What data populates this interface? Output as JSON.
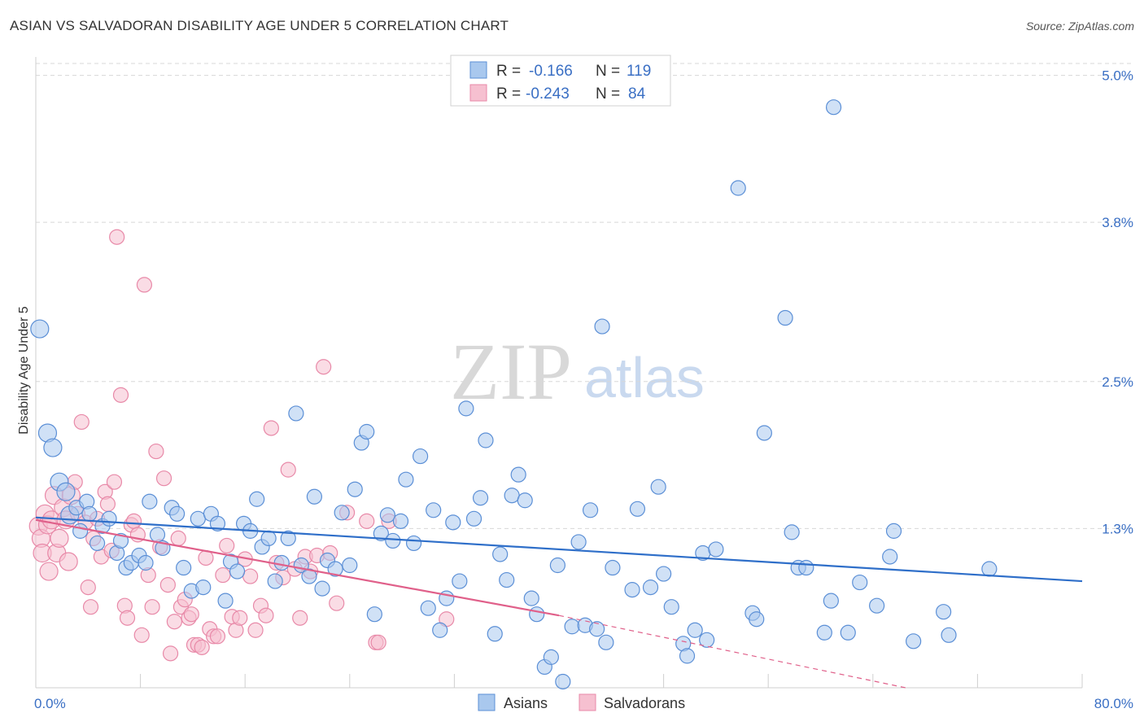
{
  "title": "ASIAN VS SALVADORAN DISABILITY AGE UNDER 5 CORRELATION CHART",
  "source": "Source: ZipAtlas.com",
  "watermark": {
    "zip": "ZIP",
    "atlas": "atlas"
  },
  "colors": {
    "asian_fill": "#a9c8ee",
    "asian_stroke": "#5b8fd6",
    "asian_line": "#2f6fc9",
    "salv_fill": "#f6c0d0",
    "salv_stroke": "#e889a8",
    "salv_line": "#e0608a",
    "grid": "#d8d8d8",
    "tick_text": "#3a6fc4"
  },
  "legend": {
    "rows": [
      {
        "r_label": "R =",
        "r_value": "-0.166",
        "n_label": "N =",
        "n_value": "119"
      },
      {
        "r_label": "R =",
        "r_value": "-0.243",
        "n_label": "N =",
        "n_value": "84"
      }
    ]
  },
  "chart_data": {
    "type": "scatter",
    "title": "ASIAN VS SALVADORAN DISABILITY AGE UNDER 5 CORRELATION CHART",
    "xlabel": "",
    "ylabel": "Disability Age Under 5",
    "xlim": [
      0,
      80
    ],
    "ylim": [
      0,
      5.15
    ],
    "x_tick_labels": [
      "0.0%",
      "80.0%"
    ],
    "y_ticks": [
      1.3,
      2.5,
      3.8,
      5.0
    ],
    "y_tick_labels": [
      "1.3%",
      "2.5%",
      "3.8%",
      "5.0%"
    ],
    "grid": true,
    "legend_position": "top-center",
    "series": [
      {
        "name": "Asians",
        "r": -0.166,
        "n": 119,
        "trend": {
          "x": [
            0,
            80
          ],
          "y": [
            1.39,
            0.87
          ]
        },
        "points": [
          [
            0.3,
            2.93
          ],
          [
            0.9,
            2.08
          ],
          [
            1.3,
            1.96
          ],
          [
            1.8,
            1.68
          ],
          [
            2.3,
            1.6
          ],
          [
            2.6,
            1.41
          ],
          [
            3.1,
            1.47
          ],
          [
            3.4,
            1.28
          ],
          [
            3.9,
            1.52
          ],
          [
            4.1,
            1.42
          ],
          [
            4.7,
            1.18
          ],
          [
            5.1,
            1.32
          ],
          [
            5.6,
            1.38
          ],
          [
            6.2,
            1.1
          ],
          [
            6.5,
            1.2
          ],
          [
            6.9,
            0.98
          ],
          [
            7.3,
            1.02
          ],
          [
            7.9,
            1.08
          ],
          [
            8.4,
            1.02
          ],
          [
            8.7,
            1.52
          ],
          [
            9.3,
            1.25
          ],
          [
            9.7,
            1.14
          ],
          [
            10.4,
            1.47
          ],
          [
            10.8,
            1.42
          ],
          [
            11.3,
            0.98
          ],
          [
            11.9,
            0.79
          ],
          [
            12.4,
            1.38
          ],
          [
            12.8,
            0.82
          ],
          [
            13.4,
            1.42
          ],
          [
            13.9,
            1.34
          ],
          [
            14.5,
            0.71
          ],
          [
            14.9,
            1.03
          ],
          [
            15.4,
            0.95
          ],
          [
            15.9,
            1.34
          ],
          [
            16.4,
            1.28
          ],
          [
            16.9,
            1.54
          ],
          [
            17.3,
            1.15
          ],
          [
            17.8,
            1.22
          ],
          [
            18.3,
            0.87
          ],
          [
            18.8,
            1.02
          ],
          [
            19.3,
            1.22
          ],
          [
            19.9,
            2.24
          ],
          [
            20.3,
            1.0
          ],
          [
            20.9,
            0.91
          ],
          [
            21.3,
            1.56
          ],
          [
            21.9,
            0.81
          ],
          [
            22.3,
            1.04
          ],
          [
            22.9,
            0.97
          ],
          [
            23.4,
            1.43
          ],
          [
            24.0,
            1.0
          ],
          [
            24.4,
            1.62
          ],
          [
            24.9,
            2.0
          ],
          [
            25.3,
            2.09
          ],
          [
            25.9,
            0.6
          ],
          [
            26.4,
            1.26
          ],
          [
            26.9,
            1.41
          ],
          [
            27.3,
            1.2
          ],
          [
            27.9,
            1.36
          ],
          [
            28.3,
            1.7
          ],
          [
            28.9,
            1.18
          ],
          [
            29.4,
            1.89
          ],
          [
            30.0,
            0.65
          ],
          [
            30.4,
            1.45
          ],
          [
            30.9,
            0.47
          ],
          [
            31.4,
            0.73
          ],
          [
            31.9,
            1.35
          ],
          [
            32.4,
            0.87
          ],
          [
            32.9,
            2.28
          ],
          [
            33.5,
            1.38
          ],
          [
            34.0,
            1.55
          ],
          [
            34.4,
            2.02
          ],
          [
            35.1,
            0.44
          ],
          [
            35.5,
            1.09
          ],
          [
            36.0,
            0.88
          ],
          [
            36.4,
            1.57
          ],
          [
            36.9,
            1.74
          ],
          [
            37.4,
            1.53
          ],
          [
            37.9,
            0.73
          ],
          [
            38.3,
            0.6
          ],
          [
            38.9,
            0.17
          ],
          [
            39.4,
            0.25
          ],
          [
            39.9,
            1.0
          ],
          [
            40.3,
            0.05
          ],
          [
            41.0,
            0.5
          ],
          [
            41.5,
            1.19
          ],
          [
            42.0,
            0.51
          ],
          [
            42.4,
            1.45
          ],
          [
            42.9,
            0.48
          ],
          [
            43.3,
            2.95
          ],
          [
            43.6,
            0.37
          ],
          [
            44.1,
            0.98
          ],
          [
            45.6,
            0.8
          ],
          [
            46.0,
            1.46
          ],
          [
            47.0,
            0.82
          ],
          [
            47.6,
            1.64
          ],
          [
            48.0,
            0.93
          ],
          [
            48.6,
            0.66
          ],
          [
            49.5,
            0.36
          ],
          [
            49.8,
            0.26
          ],
          [
            50.4,
            0.47
          ],
          [
            51.0,
            1.1
          ],
          [
            51.3,
            0.39
          ],
          [
            52.0,
            1.13
          ],
          [
            53.7,
            4.08
          ],
          [
            54.8,
            0.61
          ],
          [
            55.1,
            0.56
          ],
          [
            55.7,
            2.08
          ],
          [
            57.3,
            3.02
          ],
          [
            57.8,
            1.27
          ],
          [
            58.3,
            0.98
          ],
          [
            58.9,
            0.98
          ],
          [
            60.3,
            0.45
          ],
          [
            60.8,
            0.71
          ],
          [
            61.0,
            4.74
          ],
          [
            62.1,
            0.45
          ],
          [
            63.0,
            0.86
          ],
          [
            64.3,
            0.67
          ],
          [
            65.3,
            1.07
          ],
          [
            65.6,
            1.28
          ],
          [
            67.1,
            0.38
          ],
          [
            69.4,
            0.62
          ],
          [
            69.8,
            0.43
          ],
          [
            72.9,
            0.97
          ]
        ]
      },
      {
        "name": "Salvadorans",
        "r": -0.243,
        "n": 84,
        "trend": {
          "x": [
            0,
            40
          ],
          "y": [
            1.37,
            0.59
          ]
        },
        "trend_dashed": {
          "x": [
            40,
            66.5
          ],
          "y": [
            0.59,
            0.0
          ]
        },
        "points": [
          [
            0.2,
            1.32
          ],
          [
            0.4,
            1.22
          ],
          [
            0.5,
            1.1
          ],
          [
            0.7,
            1.42
          ],
          [
            0.9,
            1.33
          ],
          [
            1.0,
            0.95
          ],
          [
            1.2,
            1.37
          ],
          [
            1.4,
            1.57
          ],
          [
            1.6,
            1.1
          ],
          [
            1.8,
            1.22
          ],
          [
            2.1,
            1.47
          ],
          [
            2.3,
            1.37
          ],
          [
            2.5,
            1.03
          ],
          [
            2.7,
            1.57
          ],
          [
            3.0,
            1.68
          ],
          [
            3.2,
            1.42
          ],
          [
            3.5,
            2.17
          ],
          [
            3.8,
            1.35
          ],
          [
            4.0,
            0.82
          ],
          [
            4.2,
            0.66
          ],
          [
            4.4,
            1.22
          ],
          [
            4.7,
            1.38
          ],
          [
            5.0,
            1.07
          ],
          [
            5.3,
            1.6
          ],
          [
            5.5,
            1.5
          ],
          [
            5.8,
            1.12
          ],
          [
            6.0,
            1.68
          ],
          [
            6.2,
            3.68
          ],
          [
            6.5,
            2.39
          ],
          [
            6.8,
            0.67
          ],
          [
            7.0,
            0.57
          ],
          [
            7.3,
            1.33
          ],
          [
            7.5,
            1.36
          ],
          [
            7.8,
            1.25
          ],
          [
            8.1,
            0.43
          ],
          [
            8.3,
            3.29
          ],
          [
            8.6,
            0.92
          ],
          [
            8.9,
            0.66
          ],
          [
            9.2,
            1.93
          ],
          [
            9.5,
            1.15
          ],
          [
            9.8,
            1.71
          ],
          [
            10.1,
            0.84
          ],
          [
            10.3,
            0.28
          ],
          [
            10.6,
            0.54
          ],
          [
            10.9,
            1.22
          ],
          [
            11.1,
            0.66
          ],
          [
            11.4,
            0.72
          ],
          [
            11.7,
            0.57
          ],
          [
            11.9,
            0.6
          ],
          [
            12.1,
            0.35
          ],
          [
            12.4,
            0.35
          ],
          [
            12.7,
            0.33
          ],
          [
            13.0,
            1.06
          ],
          [
            13.3,
            0.48
          ],
          [
            13.6,
            0.42
          ],
          [
            13.9,
            0.42
          ],
          [
            14.3,
            0.92
          ],
          [
            14.6,
            1.16
          ],
          [
            15.0,
            0.58
          ],
          [
            15.3,
            0.47
          ],
          [
            15.6,
            0.57
          ],
          [
            16.0,
            1.05
          ],
          [
            16.4,
            0.91
          ],
          [
            16.8,
            0.47
          ],
          [
            17.2,
            0.67
          ],
          [
            17.6,
            0.59
          ],
          [
            18.0,
            2.12
          ],
          [
            18.4,
            1.02
          ],
          [
            18.9,
            0.9
          ],
          [
            19.3,
            1.78
          ],
          [
            19.8,
            0.97
          ],
          [
            20.2,
            0.57
          ],
          [
            20.6,
            1.07
          ],
          [
            21.0,
            0.95
          ],
          [
            21.5,
            1.08
          ],
          [
            22.0,
            2.62
          ],
          [
            22.5,
            1.1
          ],
          [
            23.0,
            0.69
          ],
          [
            23.8,
            1.43
          ],
          [
            25.3,
            1.36
          ],
          [
            26.0,
            0.37
          ],
          [
            26.2,
            0.37
          ],
          [
            27.0,
            1.36
          ],
          [
            31.4,
            0.56
          ]
        ]
      }
    ]
  },
  "bottom_legend": {
    "items": [
      "Asians",
      "Salvadorans"
    ]
  }
}
